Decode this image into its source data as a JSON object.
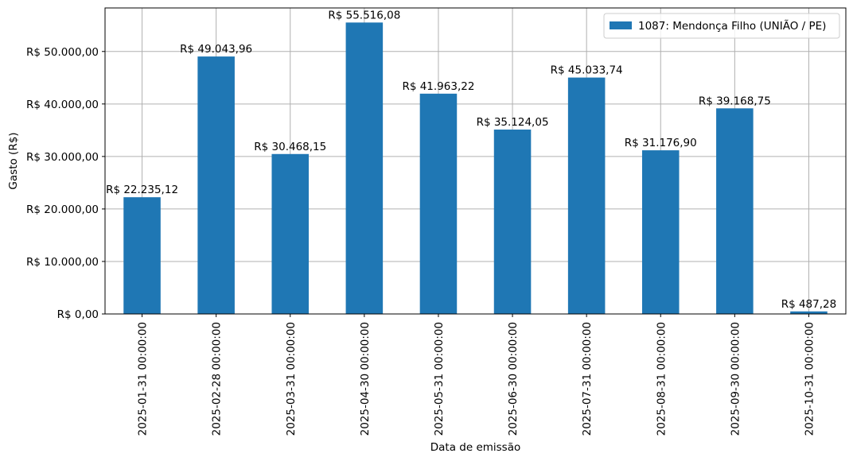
{
  "chart_data": {
    "type": "bar",
    "categories": [
      "2025-01-31 00:00:00",
      "2025-02-28 00:00:00",
      "2025-03-31 00:00:00",
      "2025-04-30 00:00:00",
      "2025-05-31 00:00:00",
      "2025-06-30 00:00:00",
      "2025-07-31 00:00:00",
      "2025-08-31 00:00:00",
      "2025-09-30 00:00:00",
      "2025-10-31 00:00:00"
    ],
    "series": [
      {
        "name": "1087: Mendonça Filho (UNIÃO / PE)",
        "values": [
          22235.12,
          49043.96,
          30468.15,
          55516.08,
          41963.22,
          35124.05,
          45033.74,
          31176.9,
          39168.75,
          487.28
        ],
        "data_labels": [
          "R$ 22.235,12",
          "R$ 49.043,96",
          "R$ 30.468,15",
          "R$ 55.516,08",
          "R$ 41.963,22",
          "R$ 35.124,05",
          "R$ 45.033,74",
          "R$ 31.176,90",
          "R$ 39.168,75",
          "R$ 487,28"
        ],
        "color": "#1f77b4"
      }
    ],
    "title": "",
    "xlabel": "Data de emissão",
    "ylabel": "Gasto (R$)",
    "ylim": [
      0,
      58292.88
    ],
    "yticks": [
      0,
      10000,
      20000,
      30000,
      40000,
      50000
    ],
    "ytick_labels": [
      "R$ 0,00",
      "R$ 10.000,00",
      "R$ 20.000,00",
      "R$ 30.000,00",
      "R$ 40.000,00",
      "R$ 50.000,00"
    ],
    "grid": true,
    "legend_position": "upper right"
  }
}
